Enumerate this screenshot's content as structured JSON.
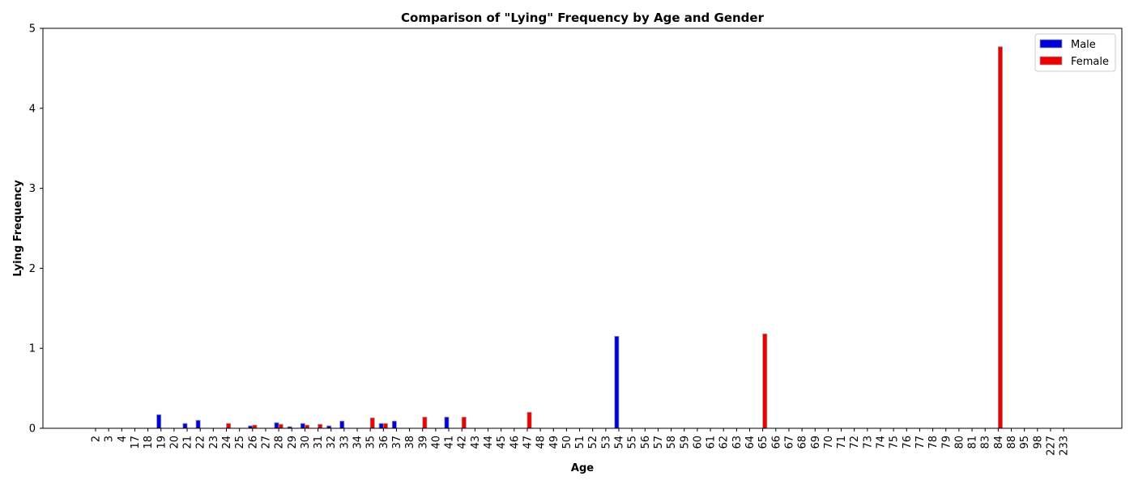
{
  "chart_data": {
    "type": "bar",
    "title": "Comparison of \"Lying\" Frequency by Age and Gender",
    "xlabel": "Age",
    "ylabel": "Lying Frequency",
    "ylim": [
      0,
      5
    ],
    "yticks": [
      0,
      1,
      2,
      3,
      4,
      5
    ],
    "categories": [
      "2",
      "3",
      "4",
      "17",
      "18",
      "19",
      "20",
      "21",
      "22",
      "23",
      "24",
      "25",
      "26",
      "27",
      "28",
      "29",
      "30",
      "31",
      "32",
      "33",
      "34",
      "35",
      "36",
      "37",
      "38",
      "39",
      "40",
      "41",
      "42",
      "43",
      "44",
      "45",
      "46",
      "47",
      "48",
      "49",
      "50",
      "51",
      "52",
      "53",
      "54",
      "55",
      "56",
      "57",
      "58",
      "59",
      "60",
      "61",
      "62",
      "63",
      "64",
      "65",
      "66",
      "67",
      "68",
      "69",
      "70",
      "71",
      "72",
      "73",
      "74",
      "75",
      "76",
      "77",
      "78",
      "79",
      "80",
      "81",
      "83",
      "84",
      "88",
      "95",
      "98",
      "227",
      "233"
    ],
    "series": [
      {
        "name": "Male",
        "color": "#0000dd",
        "values": [
          0,
          0,
          0,
          0,
          0,
          0.17,
          0,
          0.06,
          0.1,
          0,
          0,
          0,
          0.03,
          0,
          0.07,
          0.02,
          0.06,
          0,
          0.03,
          0.09,
          0,
          0,
          0.06,
          0.09,
          0,
          0,
          0,
          0.14,
          0,
          0,
          0,
          0,
          0,
          0,
          0,
          0,
          0,
          0,
          0,
          0,
          1.15,
          0,
          0,
          0,
          0,
          0,
          0,
          0,
          0,
          0,
          0,
          0,
          0,
          0,
          0,
          0,
          0,
          0,
          0,
          0,
          0,
          0,
          0,
          0,
          0,
          0,
          0,
          0,
          0,
          0,
          0,
          0,
          0,
          0,
          0
        ]
      },
      {
        "name": "Female",
        "color": "#ee0000",
        "values": [
          0,
          0,
          0,
          0,
          0,
          0,
          0,
          0,
          0,
          0,
          0.06,
          0,
          0.04,
          0,
          0.05,
          0,
          0.04,
          0.05,
          0,
          0,
          0,
          0.13,
          0.06,
          0,
          0,
          0.14,
          0,
          0,
          0.14,
          0,
          0,
          0,
          0,
          0.2,
          0,
          0,
          0,
          0,
          0,
          0,
          0,
          0,
          0,
          0,
          0,
          0,
          0,
          0,
          0,
          0,
          0,
          1.18,
          0,
          0,
          0,
          0,
          0,
          0,
          0,
          0,
          0,
          0,
          0,
          0,
          0,
          0,
          0,
          0,
          0,
          4.77,
          0,
          0,
          0,
          0,
          0
        ]
      }
    ],
    "grid": false,
    "legend": "top-right"
  }
}
